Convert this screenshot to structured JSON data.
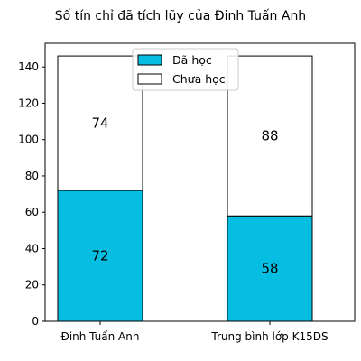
{
  "chart_data": {
    "type": "bar",
    "stacked": true,
    "title": "Số tín chỉ đã tích lũy của Đinh Tuấn Anh",
    "xlabel": "",
    "ylabel": "",
    "categories": [
      "Đinh Tuấn Anh",
      "Trung bình lớp K15DS"
    ],
    "series": [
      {
        "name": "Đã học",
        "values": [
          72,
          58
        ],
        "color": "#06bee1"
      },
      {
        "name": "Chưa học",
        "values": [
          74,
          88
        ],
        "color": "#ffffff"
      }
    ],
    "ylim": [
      0,
      153
    ],
    "yticks": [
      0,
      20,
      40,
      60,
      80,
      100,
      120,
      140
    ],
    "grid": false,
    "legend_position": "top-center",
    "edge_color": "#000000"
  }
}
